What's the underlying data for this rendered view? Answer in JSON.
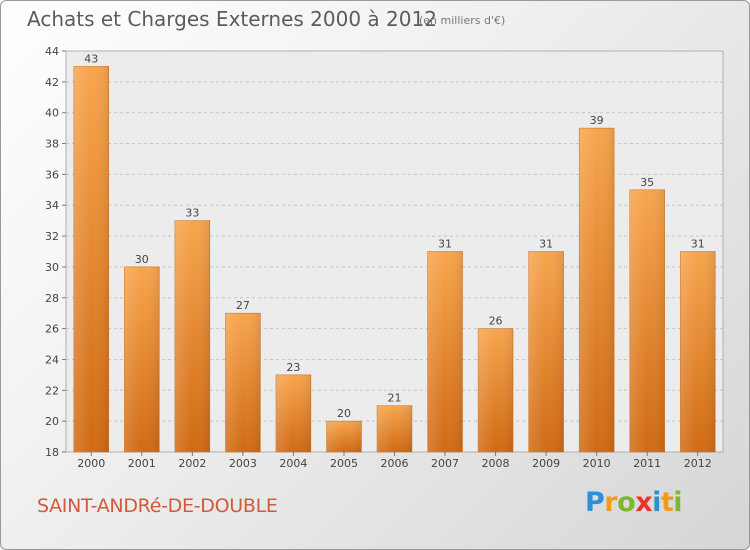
{
  "chart_data": {
    "type": "bar",
    "title": "Achats et Charges Externes 2000 à 2012",
    "subtitle": "(en milliers d'€)",
    "categories": [
      "2000",
      "2001",
      "2002",
      "2003",
      "2004",
      "2005",
      "2006",
      "2007",
      "2008",
      "2009",
      "2010",
      "2011",
      "2012"
    ],
    "values": [
      43,
      30,
      33,
      27,
      23,
      20,
      21,
      31,
      26,
      31,
      39,
      35,
      31
    ],
    "ylim": [
      18,
      44
    ],
    "yticks": [
      18,
      20,
      22,
      24,
      26,
      28,
      30,
      32,
      34,
      36,
      38,
      40,
      42,
      44
    ],
    "grid": true,
    "bar_color_top": "#f7a54d",
    "bar_color_bottom": "#d06a14"
  },
  "footer": {
    "town": "SAINT-ANDRé-DE-DOUBLE",
    "logo": [
      "P",
      "r",
      "o",
      "x",
      "i",
      "t",
      "i"
    ],
    "logo_colors": [
      "#2e8fd6",
      "#f29a1c",
      "#7cb82f",
      "#e8362d",
      "#2e8fd6",
      "#f29a1c",
      "#7cb82f"
    ]
  }
}
